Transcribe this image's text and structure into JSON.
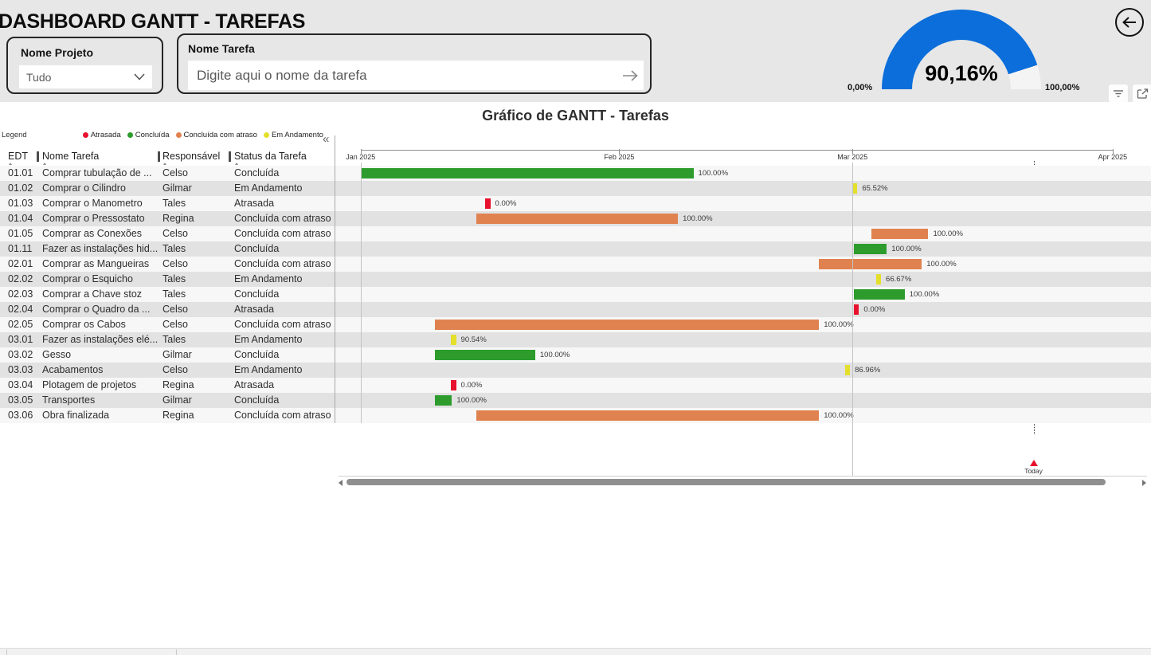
{
  "header": {
    "title": "DASHBOARD GANTT - TAREFAS",
    "project_filter": {
      "label": "Nome Projeto",
      "value": "Tudo"
    },
    "task_filter": {
      "label": "Nome Tarefa",
      "placeholder": "Digite aqui o nome da tarefa"
    },
    "gauge": {
      "value": "90,16%",
      "min_label": "0,00%",
      "max_label": "100,00%",
      "fill_pct": 90.16,
      "fill_color": "#0b6edb"
    }
  },
  "chart": {
    "title": "Gráfico de GANTT - Tarefas",
    "legend_label": "Legend",
    "collapse_icon": "«",
    "legend": [
      {
        "label": "Atrasada",
        "color": "#e8112d"
      },
      {
        "label": "Concluída",
        "color": "#2d9c2d"
      },
      {
        "label": "Concluída com atraso",
        "color": "#e08250"
      },
      {
        "label": "Em Andamento",
        "color": "#e4df2b"
      }
    ],
    "status_colors": {
      "Atrasada": "#e8112d",
      "Concluída": "#2d9c2d",
      "Concluída com atraso": "#e08250",
      "Em Andamento": "#e4df2b"
    },
    "columns": [
      "EDT",
      "Nome Tarefa",
      "Responsável",
      "Status da Tarefa"
    ],
    "timeline": [
      {
        "label": "Jan 2025",
        "pos_pct": 3.1
      },
      {
        "label": "Feb 2025",
        "pos_pct": 34.8
      },
      {
        "label": "Mar 2025",
        "pos_pct": 63.4
      },
      {
        "label": "Apr 2025",
        "pos_pct": 95.3
      }
    ],
    "gridlines_pct": [
      3.1,
      63.4
    ],
    "today": {
      "label": "Today",
      "pos_pct": 85.6
    },
    "rows": [
      {
        "edt": "01.01",
        "task": "Comprar tubulação de ...",
        "owner": "Celso",
        "status": "Concluída",
        "bar": {
          "start_pct": 3.1,
          "width_pct": 40.8,
          "label": "100.00%"
        }
      },
      {
        "edt": "01.02",
        "task": "Comprar o Cilindro",
        "owner": "Gilmar",
        "status": "Em Andamento",
        "bar": {
          "start_pct": 63.4,
          "width_pct": 0.6,
          "label": "65.52%"
        }
      },
      {
        "edt": "01.03",
        "task": "Comprar o Manometro",
        "owner": "Tales",
        "status": "Atrasada",
        "bar": {
          "start_pct": 18.4,
          "width_pct": 0.6,
          "label": "0.00%"
        }
      },
      {
        "edt": "01.04",
        "task": "Comprar o Pressostato",
        "owner": "Regina",
        "status": "Concluída com atraso",
        "bar": {
          "start_pct": 17.3,
          "width_pct": 24.7,
          "label": "100.00%"
        }
      },
      {
        "edt": "01.05",
        "task": "Comprar as Conexões",
        "owner": "Celso",
        "status": "Concluída com atraso",
        "bar": {
          "start_pct": 65.7,
          "width_pct": 7.0,
          "label": "100.00%"
        }
      },
      {
        "edt": "01.11",
        "task": "Fazer as instalações hid...",
        "owner": "Tales",
        "status": "Concluída",
        "bar": {
          "start_pct": 63.6,
          "width_pct": 4.0,
          "label": "100.00%"
        }
      },
      {
        "edt": "02.01",
        "task": "Comprar as Mangueiras",
        "owner": "Celso",
        "status": "Concluída com atraso",
        "bar": {
          "start_pct": 59.3,
          "width_pct": 12.6,
          "label": "100.00%"
        }
      },
      {
        "edt": "02.02",
        "task": "Comprar o Esquicho",
        "owner": "Tales",
        "status": "Em Andamento",
        "bar": {
          "start_pct": 66.3,
          "width_pct": 0.6,
          "label": "66.67%"
        }
      },
      {
        "edt": "02.03",
        "task": "Comprar a Chave stoz",
        "owner": "Tales",
        "status": "Concluída",
        "bar": {
          "start_pct": 63.6,
          "width_pct": 6.2,
          "label": "100.00%"
        }
      },
      {
        "edt": "02.04",
        "task": "Comprar o Quadro da ...",
        "owner": "Celso",
        "status": "Atrasada",
        "bar": {
          "start_pct": 63.6,
          "width_pct": 0.6,
          "label": "0.00%"
        }
      },
      {
        "edt": "02.05",
        "task": "Comprar os Cabos",
        "owner": "Celso",
        "status": "Concluída com atraso",
        "bar": {
          "start_pct": 12.2,
          "width_pct": 47.1,
          "label": "100.00%"
        }
      },
      {
        "edt": "03.01",
        "task": "Fazer as instalações elé...",
        "owner": "Tales",
        "status": "Em Andamento",
        "bar": {
          "start_pct": 14.2,
          "width_pct": 0.6,
          "label": "90.54%"
        }
      },
      {
        "edt": "03.02",
        "task": "Gesso",
        "owner": "Gilmar",
        "status": "Concluída",
        "bar": {
          "start_pct": 12.2,
          "width_pct": 12.3,
          "label": "100.00%"
        }
      },
      {
        "edt": "03.03",
        "task": "Acabamentos",
        "owner": "Celso",
        "status": "Em Andamento",
        "bar": {
          "start_pct": 62.5,
          "width_pct": 0.6,
          "label": "86.96%"
        }
      },
      {
        "edt": "03.04",
        "task": "Plotagem de projetos",
        "owner": "Regina",
        "status": "Atrasada",
        "bar": {
          "start_pct": 14.2,
          "width_pct": 0.6,
          "label": "0.00%"
        }
      },
      {
        "edt": "03.05",
        "task": "Transportes",
        "owner": "Gilmar",
        "status": "Concluída",
        "bar": {
          "start_pct": 12.2,
          "width_pct": 2.1,
          "label": "100.00%"
        }
      },
      {
        "edt": "03.06",
        "task": "Obra finalizada",
        "owner": "Regina",
        "status": "Concluída com atraso",
        "bar": {
          "start_pct": 17.3,
          "width_pct": 42.0,
          "label": "100.00%"
        }
      }
    ]
  }
}
